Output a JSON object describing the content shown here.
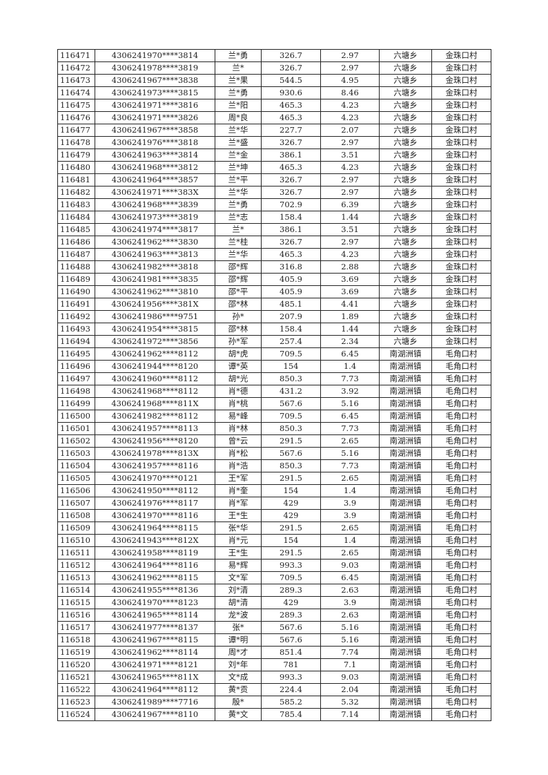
{
  "table": {
    "rows": [
      [
        "116471",
        "4306241970****3814",
        "兰*勇",
        "326.7",
        "2.97",
        "六塘乡",
        "金珠口村"
      ],
      [
        "116472",
        "4306241978****3819",
        "兰*",
        "326.7",
        "2.97",
        "六塘乡",
        "金珠口村"
      ],
      [
        "116473",
        "4306241967****3838",
        "兰*果",
        "544.5",
        "4.95",
        "六塘乡",
        "金珠口村"
      ],
      [
        "116474",
        "4306241973****3815",
        "兰*勇",
        "930.6",
        "8.46",
        "六塘乡",
        "金珠口村"
      ],
      [
        "116475",
        "4306241971****3816",
        "兰*阳",
        "465.3",
        "4.23",
        "六塘乡",
        "金珠口村"
      ],
      [
        "116476",
        "4306241971****3826",
        "周*良",
        "465.3",
        "4.23",
        "六塘乡",
        "金珠口村"
      ],
      [
        "116477",
        "4306241967****3858",
        "兰*华",
        "227.7",
        "2.07",
        "六塘乡",
        "金珠口村"
      ],
      [
        "116478",
        "4306241976****3818",
        "兰*盛",
        "326.7",
        "2.97",
        "六塘乡",
        "金珠口村"
      ],
      [
        "116479",
        "4306241963****3814",
        "兰*金",
        "386.1",
        "3.51",
        "六塘乡",
        "金珠口村"
      ],
      [
        "116480",
        "4306241968****3812",
        "兰*坤",
        "465.3",
        "4.23",
        "六塘乡",
        "金珠口村"
      ],
      [
        "116481",
        "4306241964****3857",
        "兰*平",
        "326.7",
        "2.97",
        "六塘乡",
        "金珠口村"
      ],
      [
        "116482",
        "4306241971****383X",
        "兰*华",
        "326.7",
        "2.97",
        "六塘乡",
        "金珠口村"
      ],
      [
        "116483",
        "4306241968****3839",
        "兰*勇",
        "702.9",
        "6.39",
        "六塘乡",
        "金珠口村"
      ],
      [
        "116484",
        "4306241973****3819",
        "兰*志",
        "158.4",
        "1.44",
        "六塘乡",
        "金珠口村"
      ],
      [
        "116485",
        "4306241974****3817",
        "兰*",
        "386.1",
        "3.51",
        "六塘乡",
        "金珠口村"
      ],
      [
        "116486",
        "4306241962****3830",
        "兰*桂",
        "326.7",
        "2.97",
        "六塘乡",
        "金珠口村"
      ],
      [
        "116487",
        "4306241963****3813",
        "兰*华",
        "465.3",
        "4.23",
        "六塘乡",
        "金珠口村"
      ],
      [
        "116488",
        "4306241982****3818",
        "邵*辉",
        "316.8",
        "2.88",
        "六塘乡",
        "金珠口村"
      ],
      [
        "116489",
        "4306241981****3835",
        "邵*辉",
        "405.9",
        "3.69",
        "六塘乡",
        "金珠口村"
      ],
      [
        "116490",
        "4306241962****3810",
        "邵*平",
        "405.9",
        "3.69",
        "六塘乡",
        "金珠口村"
      ],
      [
        "116491",
        "4306241956****381X",
        "邵*林",
        "485.1",
        "4.41",
        "六塘乡",
        "金珠口村"
      ],
      [
        "116492",
        "4306241986****9751",
        "孙*",
        "207.9",
        "1.89",
        "六塘乡",
        "金珠口村"
      ],
      [
        "116493",
        "4306241954****3815",
        "邵*林",
        "158.4",
        "1.44",
        "六塘乡",
        "金珠口村"
      ],
      [
        "116494",
        "4306241972****3856",
        "孙*军",
        "257.4",
        "2.34",
        "六塘乡",
        "金珠口村"
      ],
      [
        "116495",
        "4306241962****8112",
        "胡*虎",
        "709.5",
        "6.45",
        "南湖洲镇",
        "毛角口村"
      ],
      [
        "116496",
        "4306241944****8120",
        "谭*英",
        "154",
        "1.4",
        "南湖洲镇",
        "毛角口村"
      ],
      [
        "116497",
        "4306241960****8112",
        "胡*光",
        "850.3",
        "7.73",
        "南湖洲镇",
        "毛角口村"
      ],
      [
        "116498",
        "4306241968****8112",
        "肖*德",
        "431.2",
        "3.92",
        "南湖洲镇",
        "毛角口村"
      ],
      [
        "116499",
        "4306241968****811X",
        "肖*桃",
        "567.6",
        "5.16",
        "南湖洲镇",
        "毛角口村"
      ],
      [
        "116500",
        "4306241982****8112",
        "易*峰",
        "709.5",
        "6.45",
        "南湖洲镇",
        "毛角口村"
      ],
      [
        "116501",
        "4306241957****8113",
        "肖*林",
        "850.3",
        "7.73",
        "南湖洲镇",
        "毛角口村"
      ],
      [
        "116502",
        "4306241956****8120",
        "曾*云",
        "291.5",
        "2.65",
        "南湖洲镇",
        "毛角口村"
      ],
      [
        "116503",
        "4306241978****813X",
        "肖*松",
        "567.6",
        "5.16",
        "南湖洲镇",
        "毛角口村"
      ],
      [
        "116504",
        "4306241957****8116",
        "肖*浩",
        "850.3",
        "7.73",
        "南湖洲镇",
        "毛角口村"
      ],
      [
        "116505",
        "4306241970****0121",
        "王*军",
        "291.5",
        "2.65",
        "南湖洲镇",
        "毛角口村"
      ],
      [
        "116506",
        "4306241950****8112",
        "肖*奎",
        "154",
        "1.4",
        "南湖洲镇",
        "毛角口村"
      ],
      [
        "116507",
        "4306241976****8117",
        "肖*军",
        "429",
        "3.9",
        "南湖洲镇",
        "毛角口村"
      ],
      [
        "116508",
        "4306241970****8116",
        "王*生",
        "429",
        "3.9",
        "南湖洲镇",
        "毛角口村"
      ],
      [
        "116509",
        "4306241964****8115",
        "张*华",
        "291.5",
        "2.65",
        "南湖洲镇",
        "毛角口村"
      ],
      [
        "116510",
        "4306241943****812X",
        "肖*元",
        "154",
        "1.4",
        "南湖洲镇",
        "毛角口村"
      ],
      [
        "116511",
        "4306241958****8119",
        "王*生",
        "291.5",
        "2.65",
        "南湖洲镇",
        "毛角口村"
      ],
      [
        "116512",
        "4306241964****8116",
        "易*辉",
        "993.3",
        "9.03",
        "南湖洲镇",
        "毛角口村"
      ],
      [
        "116513",
        "4306241962****8115",
        "文*军",
        "709.5",
        "6.45",
        "南湖洲镇",
        "毛角口村"
      ],
      [
        "116514",
        "4306241955****8136",
        "刘*清",
        "289.3",
        "2.63",
        "南湖洲镇",
        "毛角口村"
      ],
      [
        "116515",
        "4306241970****8123",
        "胡*清",
        "429",
        "3.9",
        "南湖洲镇",
        "毛角口村"
      ],
      [
        "116516",
        "4306241965****8114",
        "龙*波",
        "289.3",
        "2.63",
        "南湖洲镇",
        "毛角口村"
      ],
      [
        "116517",
        "4306241977****8137",
        "张*",
        "567.6",
        "5.16",
        "南湖洲镇",
        "毛角口村"
      ],
      [
        "116518",
        "4306241967****8115",
        "谭*明",
        "567.6",
        "5.16",
        "南湖洲镇",
        "毛角口村"
      ],
      [
        "116519",
        "4306241962****8114",
        "周*才",
        "851.4",
        "7.74",
        "南湖洲镇",
        "毛角口村"
      ],
      [
        "116520",
        "4306241971****8121",
        "刘*年",
        "781",
        "7.1",
        "南湖洲镇",
        "毛角口村"
      ],
      [
        "116521",
        "4306241965****811X",
        "文*成",
        "993.3",
        "9.03",
        "南湖洲镇",
        "毛角口村"
      ],
      [
        "116522",
        "4306241964****8112",
        "黄*贡",
        "224.4",
        "2.04",
        "南湖洲镇",
        "毛角口村"
      ],
      [
        "116523",
        "4306241989****7716",
        "殷*",
        "585.2",
        "5.32",
        "南湖洲镇",
        "毛角口村"
      ],
      [
        "116524",
        "4306241967****8110",
        "黄*文",
        "785.4",
        "7.14",
        "南湖洲镇",
        "毛角口村"
      ]
    ]
  }
}
